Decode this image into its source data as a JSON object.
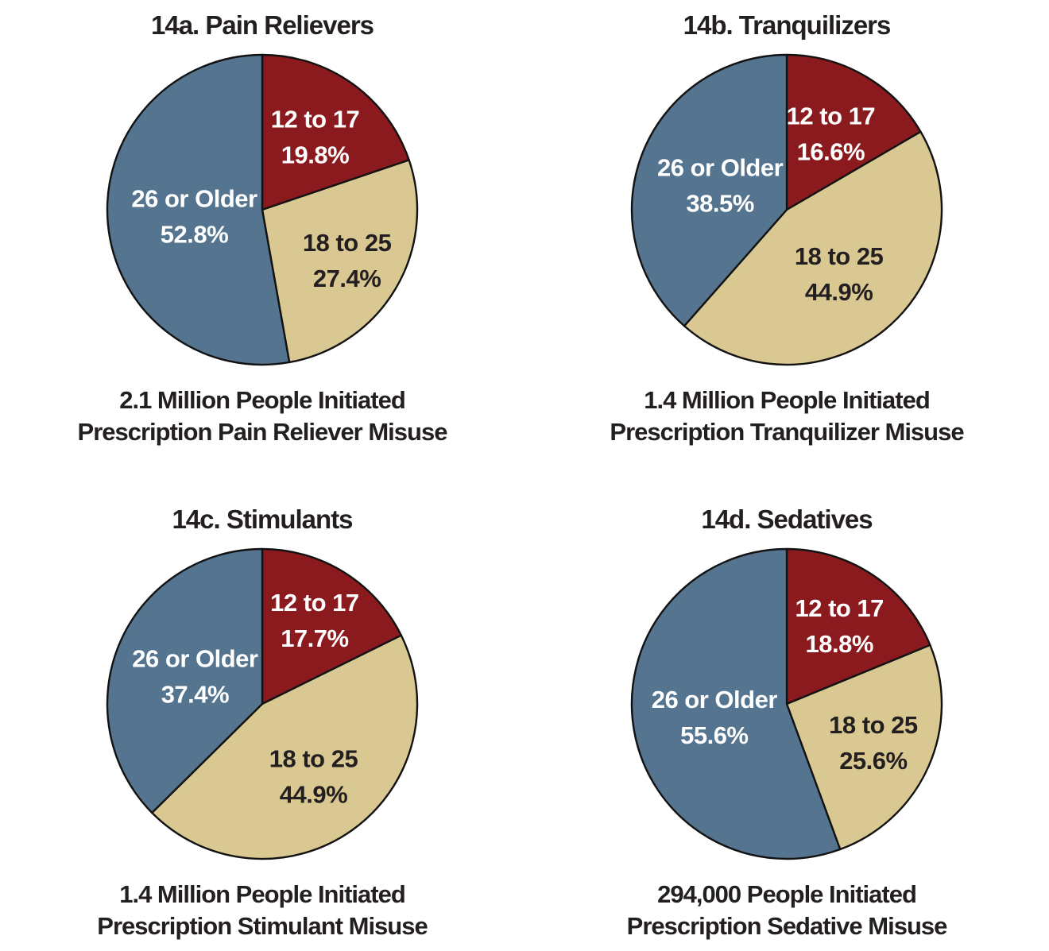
{
  "figure": {
    "background": "#ffffff"
  },
  "palette": {
    "age_12_17": "#8a1a1d",
    "age_18_25": "#d9c892",
    "age_26_older": "#54748f",
    "slice_stroke": "#121212",
    "text_dark": "#231f20",
    "text_light": "#ffffff"
  },
  "chart_layout": {
    "start_angle": "12 o'clock",
    "direction": "clockwise",
    "grid": "off",
    "legend": "none (labels inside slices)"
  },
  "chart_data": [
    {
      "id": "14a",
      "type": "pie",
      "title": "14a. Pain Relievers",
      "caption": [
        "2.1 Million People Initiated",
        "Prescription Pain Reliever Misuse"
      ],
      "units": "percent",
      "slices": [
        {
          "label": "12 to 17",
          "value": 19.8,
          "display": "19.8%",
          "color": "age_12_17",
          "text": "light",
          "label_r": 0.585
        },
        {
          "label": "18 to 25",
          "value": 27.4,
          "display": "27.4%",
          "color": "age_18_25",
          "text": "dark",
          "label_r": 0.635
        },
        {
          "label": "26 or Older",
          "value": 52.8,
          "display": "52.8%",
          "color": "age_26_older",
          "text": "light",
          "label_r": 0.44
        }
      ]
    },
    {
      "id": "14b",
      "type": "pie",
      "title": "14b. Tranquilizers",
      "caption": [
        "1.4 Million People Initiated",
        "Prescription Tranquilizer Misuse"
      ],
      "units": "percent",
      "slices": [
        {
          "label": "12 to 17",
          "value": 16.6,
          "display": "16.6%",
          "color": "age_12_17",
          "text": "light",
          "label_r": 0.57
        },
        {
          "label": "18 to 25",
          "value": 44.9,
          "display": "44.9%",
          "color": "age_18_25",
          "text": "dark",
          "label_r": 0.53
        },
        {
          "label": "26 or Older",
          "value": 38.5,
          "display": "38.5%",
          "color": "age_26_older",
          "text": "light",
          "label_r": 0.46
        }
      ]
    },
    {
      "id": "14c",
      "type": "pie",
      "title": "14c. Stimulants",
      "caption": [
        "1.4 Million People Initiated",
        "Prescription Stimulant Misuse"
      ],
      "units": "percent",
      "slices": [
        {
          "label": "12 to 17",
          "value": 17.7,
          "display": "17.7%",
          "color": "age_12_17",
          "text": "light",
          "label_r": 0.64
        },
        {
          "label": "18 to 25",
          "value": 44.9,
          "display": "44.9%",
          "color": "age_18_25",
          "text": "dark",
          "label_r": 0.57
        },
        {
          "label": "26 or Older",
          "value": 37.4,
          "display": "37.4%",
          "color": "age_26_older",
          "text": "light",
          "label_r": 0.47
        }
      ]
    },
    {
      "id": "14d",
      "type": "pie",
      "title": "14d. Sedatives",
      "caption": [
        "294,000 People Initiated",
        "Prescription Sedative Misuse"
      ],
      "units": "percent",
      "slices": [
        {
          "label": "12 to 17",
          "value": 18.8,
          "display": "18.8%",
          "color": "age_12_17",
          "text": "light",
          "label_r": 0.61
        },
        {
          "label": "18 to 25",
          "value": 25.6,
          "display": "25.6%",
          "color": "age_18_25",
          "text": "dark",
          "label_r": 0.61
        },
        {
          "label": "26 or Older",
          "value": 55.6,
          "display": "55.6%",
          "color": "age_26_older",
          "text": "light",
          "label_r": 0.475
        }
      ]
    }
  ]
}
